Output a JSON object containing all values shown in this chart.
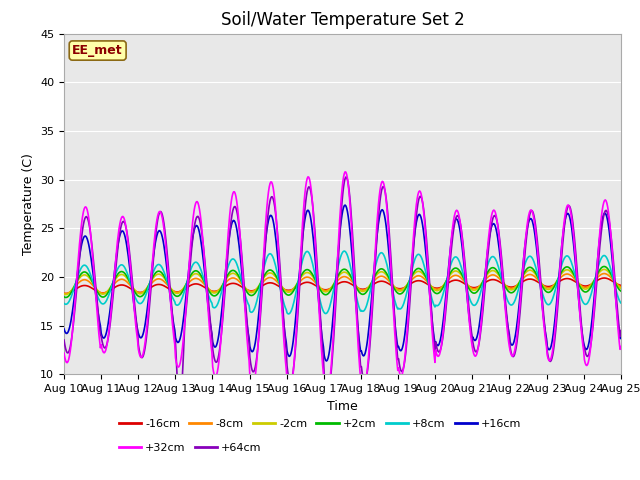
{
  "title": "Soil/Water Temperature Set 2",
  "xlabel": "Time",
  "ylabel": "Temperature (C)",
  "ylim": [
    10,
    45
  ],
  "yticks": [
    10,
    15,
    20,
    25,
    30,
    35,
    40,
    45
  ],
  "date_labels": [
    "Aug 10",
    "Aug 11",
    "Aug 12",
    "Aug 13",
    "Aug 14",
    "Aug 15",
    "Aug 16",
    "Aug 17",
    "Aug 18",
    "Aug 19",
    "Aug 20",
    "Aug 21",
    "Aug 22",
    "Aug 23",
    "Aug 24",
    "Aug 25"
  ],
  "watermark": "EE_met",
  "fig_bg": "#ffffff",
  "plot_bg": "#e8e8e8",
  "grid_color": "#ffffff",
  "series_colors": {
    "-16cm": "#dd0000",
    "-8cm": "#ff8800",
    "-2cm": "#cccc00",
    "+2cm": "#00bb00",
    "+8cm": "#00cccc",
    "+16cm": "#0000cc",
    "+32cm": "#ff00ff",
    "+64cm": "#8800bb"
  },
  "n_days": 15,
  "baseline": 19.2,
  "trend_neg16": 0.055,
  "title_fontsize": 12,
  "axis_fontsize": 9,
  "tick_fontsize": 8
}
